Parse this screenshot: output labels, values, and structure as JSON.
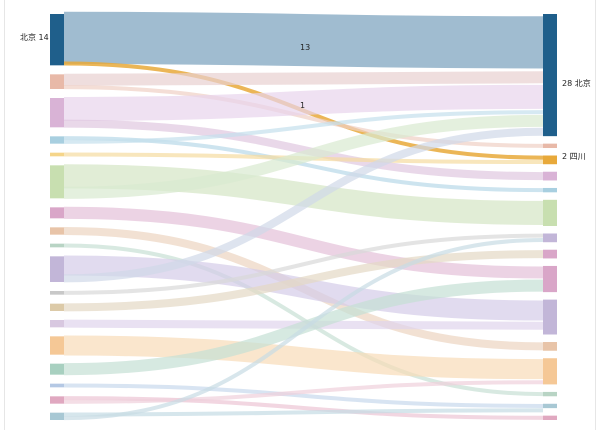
{
  "chart_data": {
    "type": "sankey",
    "title": "",
    "node_labels": {
      "source_beijing": "北京 14",
      "target_beijing": "28 北京",
      "target_sichuan": "2 四川"
    },
    "link_labels": {
      "bj_to_bj": "13",
      "bj_to_sc": "1"
    },
    "nodes": [
      {
        "id": "s_bj",
        "side": "left",
        "value": 14,
        "color": "#1f5f8b"
      },
      {
        "id": "s2",
        "side": "left",
        "value": 4,
        "color": "#e8b9a8"
      },
      {
        "id": "s3",
        "side": "left",
        "value": 8,
        "color": "#d9b3d6"
      },
      {
        "id": "s4",
        "side": "left",
        "value": 2,
        "color": "#a8cfe0"
      },
      {
        "id": "s5",
        "side": "left",
        "value": 1,
        "color": "#f5d58a"
      },
      {
        "id": "s6",
        "side": "left",
        "value": 9,
        "color": "#c8dfb0"
      },
      {
        "id": "s7",
        "side": "left",
        "value": 3,
        "color": "#d9a6c8"
      },
      {
        "id": "s8",
        "side": "left",
        "value": 2,
        "color": "#e8c4a8"
      },
      {
        "id": "s9",
        "side": "left",
        "value": 1,
        "color": "#b8d4c4"
      },
      {
        "id": "s10",
        "side": "left",
        "value": 7,
        "color": "#c2b6d8"
      },
      {
        "id": "s11",
        "side": "left",
        "value": 1,
        "color": "#c8c8c8"
      },
      {
        "id": "s12",
        "side": "left",
        "value": 2,
        "color": "#dccaa8"
      },
      {
        "id": "s13",
        "side": "left",
        "value": 2,
        "color": "#d8c8e0"
      },
      {
        "id": "s14",
        "side": "left",
        "value": 5,
        "color": "#f5c896"
      },
      {
        "id": "s15",
        "side": "left",
        "value": 3,
        "color": "#a8d0c0"
      },
      {
        "id": "s16",
        "side": "left",
        "value": 1,
        "color": "#b4c8e4"
      },
      {
        "id": "s17",
        "side": "left",
        "value": 2,
        "color": "#e0a8c0"
      },
      {
        "id": "s18",
        "side": "left",
        "value": 2,
        "color": "#a8c8d4"
      },
      {
        "id": "t_bj",
        "side": "right",
        "value": 28,
        "color": "#1f5f8b"
      },
      {
        "id": "t2",
        "side": "right",
        "value": 1,
        "color": "#e8b9a8"
      },
      {
        "id": "t_sc",
        "side": "right",
        "value": 2,
        "color": "#e8a93a"
      },
      {
        "id": "t4",
        "side": "right",
        "value": 2,
        "color": "#d9b3d6"
      },
      {
        "id": "t5",
        "side": "right",
        "value": 1,
        "color": "#a8cfe0"
      },
      {
        "id": "t6",
        "side": "right",
        "value": 6,
        "color": "#c8dfb0"
      },
      {
        "id": "t7",
        "side": "right",
        "value": 2,
        "color": "#c2b6d8"
      },
      {
        "id": "t8",
        "side": "right",
        "value": 2,
        "color": "#d9a6c8"
      },
      {
        "id": "t9",
        "side": "right",
        "value": 6,
        "color": "#d9a6c8"
      },
      {
        "id": "t10",
        "side": "right",
        "value": 8,
        "color": "#c2b6d8"
      },
      {
        "id": "t11",
        "side": "right",
        "value": 2,
        "color": "#e8c4a8"
      },
      {
        "id": "t12",
        "side": "right",
        "value": 6,
        "color": "#f5c896"
      },
      {
        "id": "t13",
        "side": "right",
        "value": 1,
        "color": "#b8d4c4"
      },
      {
        "id": "t14",
        "side": "right",
        "value": 1,
        "color": "#a8c8d4"
      },
      {
        "id": "t15",
        "side": "right",
        "value": 1,
        "color": "#e0a8c0"
      }
    ],
    "links": [
      {
        "source": "s_bj",
        "target": "t_bj",
        "value": 13,
        "color": "#8fb0c8"
      },
      {
        "source": "s_bj",
        "target": "t_sc",
        "value": 1,
        "color": "#e8a93a"
      },
      {
        "source": "s2",
        "target": "t_bj",
        "value": 3,
        "color": "#e8d0d0"
      },
      {
        "source": "s2",
        "target": "t2",
        "value": 1,
        "color": "#f0d0c4"
      },
      {
        "source": "s3",
        "target": "t_bj",
        "value": 6,
        "color": "#e8d4ec"
      },
      {
        "source": "s3",
        "target": "t4",
        "value": 2,
        "color": "#e0c8e0"
      },
      {
        "source": "s4",
        "target": "t5",
        "value": 1,
        "color": "#b8d8e8"
      },
      {
        "source": "s4",
        "target": "t_bj",
        "value": 1,
        "color": "#c4e0ec"
      },
      {
        "source": "s5",
        "target": "t_sc",
        "value": 1,
        "color": "#f5dca0"
      },
      {
        "source": "s6",
        "target": "t6",
        "value": 6,
        "color": "#d4e6c4"
      },
      {
        "source": "s6",
        "target": "t_bj",
        "value": 3,
        "color": "#d8ead0"
      },
      {
        "source": "s7",
        "target": "t9",
        "value": 3,
        "color": "#e4c0d8"
      },
      {
        "source": "s8",
        "target": "t11",
        "value": 2,
        "color": "#ecd4c0"
      },
      {
        "source": "s9",
        "target": "t13",
        "value": 1,
        "color": "#c8e0d4"
      },
      {
        "source": "s10",
        "target": "t10",
        "value": 5,
        "color": "#d4cce8"
      },
      {
        "source": "s10",
        "target": "t_bj",
        "value": 2,
        "color": "#d0d8e8"
      },
      {
        "source": "s11",
        "target": "t7",
        "value": 1,
        "color": "#d8d8d8"
      },
      {
        "source": "s12",
        "target": "t8",
        "value": 2,
        "color": "#e4d8c4"
      },
      {
        "source": "s13",
        "target": "t10",
        "value": 2,
        "color": "#e0d4ec"
      },
      {
        "source": "s14",
        "target": "t12",
        "value": 5,
        "color": "#f8dcb8"
      },
      {
        "source": "s15",
        "target": "t9",
        "value": 3,
        "color": "#c4e0d4"
      },
      {
        "source": "s16",
        "target": "t14",
        "value": 1,
        "color": "#c8d8ec"
      },
      {
        "source": "s17",
        "target": "t15",
        "value": 1,
        "color": "#ecc4d4"
      },
      {
        "source": "s17",
        "target": "t12",
        "value": 1,
        "color": "#f0d0dc"
      },
      {
        "source": "s18",
        "target": "t14",
        "value": 1,
        "color": "#c4dce4"
      },
      {
        "source": "s18",
        "target": "t7",
        "value": 1,
        "color": "#c8dce4"
      }
    ]
  }
}
